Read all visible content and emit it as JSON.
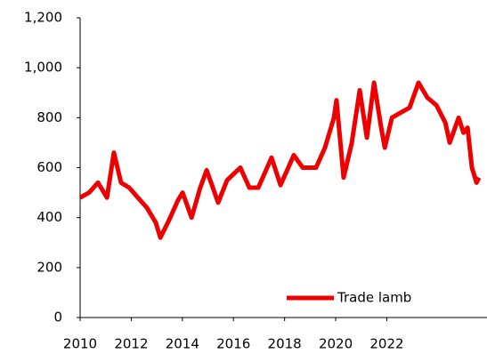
{
  "chart_data": {
    "type": "line",
    "x": [
      2010.0,
      2010.35,
      2010.7,
      2011.05,
      2011.32,
      2011.6,
      2011.92,
      2012.26,
      2012.61,
      2012.96,
      2013.14,
      2013.48,
      2013.83,
      2014.01,
      2014.36,
      2014.7,
      2014.95,
      2015.4,
      2015.75,
      2016.27,
      2016.62,
      2016.97,
      2017.49,
      2017.84,
      2018.36,
      2018.71,
      2019.23,
      2019.58,
      2019.93,
      2020.03,
      2020.31,
      2020.63,
      2020.94,
      2021.22,
      2021.5,
      2021.78,
      2021.92,
      2022.2,
      2022.54,
      2022.89,
      2023.24,
      2023.59,
      2023.94,
      2024.29,
      2024.46,
      2024.81,
      2025.0,
      2025.16,
      2025.33,
      2025.51,
      2025.61
    ],
    "series": [
      {
        "name": "Trade lamb",
        "color": "#ee0000",
        "values": [
          480,
          500,
          540,
          480,
          660,
          540,
          520,
          480,
          440,
          380,
          320,
          390,
          470,
          500,
          400,
          520,
          590,
          460,
          550,
          600,
          520,
          520,
          640,
          530,
          650,
          600,
          600,
          680,
          800,
          870,
          560,
          700,
          910,
          720,
          940,
          760,
          680,
          800,
          820,
          840,
          940,
          880,
          850,
          780,
          700,
          800,
          740,
          760,
          600,
          540,
          560
        ]
      }
    ],
    "xlim": [
      2010,
      2025.92
    ],
    "xticks": [
      2010,
      2012,
      2014,
      2016,
      2018,
      2020,
      2022
    ],
    "ylim": [
      0,
      1200
    ],
    "yticks": [
      0,
      200,
      400,
      600,
      800,
      {
        "value": 1000,
        "label": "1,000"
      },
      {
        "value": 1200,
        "label": "1,200"
      }
    ],
    "legend": "bottom-right"
  }
}
